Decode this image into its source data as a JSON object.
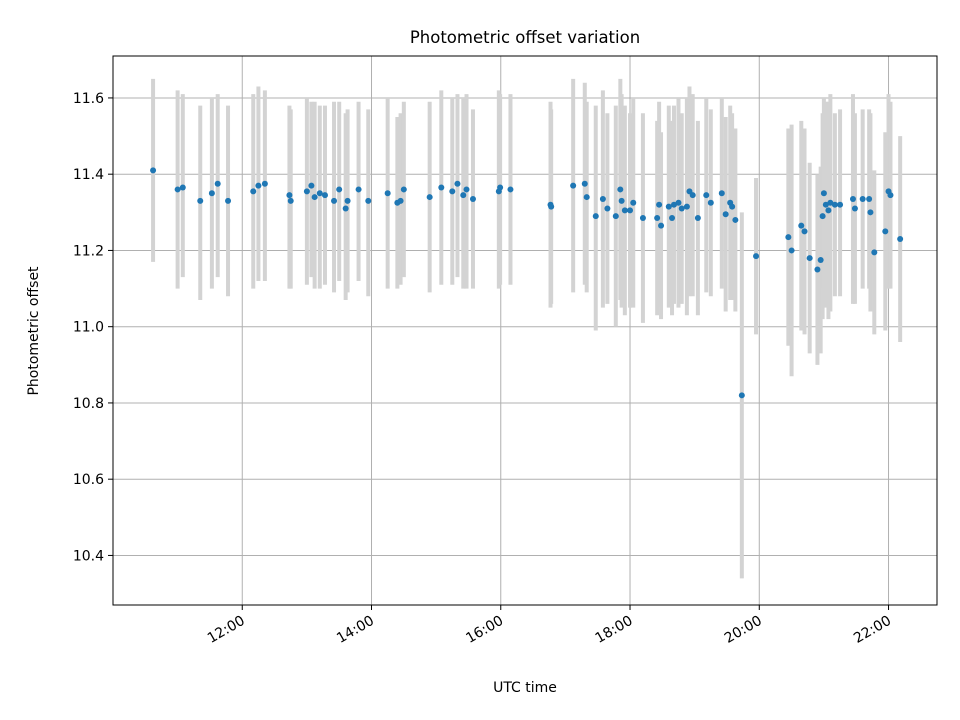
{
  "chart_data": {
    "type": "scatter",
    "title": "Photometric offset variation",
    "xlabel": "UTC time",
    "ylabel": "Photometric offset",
    "x_unit": "hours UTC",
    "xlim": [
      10.0,
      22.75
    ],
    "ylim": [
      10.27,
      11.71
    ],
    "x_ticks": [
      12,
      14,
      16,
      18,
      20,
      22
    ],
    "x_tick_labels": [
      "12:00",
      "14:00",
      "16:00",
      "18:00",
      "20:00",
      "22:00"
    ],
    "y_ticks": [
      10.4,
      10.6,
      10.8,
      11.0,
      11.2,
      11.4,
      11.6
    ],
    "y_tick_labels": [
      "10.4",
      "10.6",
      "10.8",
      "11.0",
      "11.2",
      "11.4",
      "11.6"
    ],
    "grid": true,
    "marker_color": "#1f77b4",
    "errorbar_color": "#d3d3d3",
    "points": [
      {
        "x": 10.62,
        "y": 11.41,
        "err_low": 11.17,
        "err_high": 11.65
      },
      {
        "x": 11.0,
        "y": 11.36,
        "err_low": 11.1,
        "err_high": 11.62
      },
      {
        "x": 11.08,
        "y": 11.365,
        "err_low": 11.13,
        "err_high": 11.61
      },
      {
        "x": 11.35,
        "y": 11.33,
        "err_low": 11.07,
        "err_high": 11.58
      },
      {
        "x": 11.53,
        "y": 11.35,
        "err_low": 11.1,
        "err_high": 11.6
      },
      {
        "x": 11.62,
        "y": 11.375,
        "err_low": 11.13,
        "err_high": 11.61
      },
      {
        "x": 11.78,
        "y": 11.33,
        "err_low": 11.08,
        "err_high": 11.58
      },
      {
        "x": 12.17,
        "y": 11.355,
        "err_low": 11.1,
        "err_high": 11.61
      },
      {
        "x": 12.25,
        "y": 11.37,
        "err_low": 11.12,
        "err_high": 11.63
      },
      {
        "x": 12.35,
        "y": 11.375,
        "err_low": 11.12,
        "err_high": 11.62
      },
      {
        "x": 12.73,
        "y": 11.345,
        "err_low": 11.1,
        "err_high": 11.58
      },
      {
        "x": 12.75,
        "y": 11.33,
        "err_low": 11.1,
        "err_high": 11.57
      },
      {
        "x": 13.0,
        "y": 11.355,
        "err_low": 11.11,
        "err_high": 11.6
      },
      {
        "x": 13.07,
        "y": 11.37,
        "err_low": 11.13,
        "err_high": 11.59
      },
      {
        "x": 13.12,
        "y": 11.34,
        "err_low": 11.1,
        "err_high": 11.59
      },
      {
        "x": 13.2,
        "y": 11.35,
        "err_low": 11.1,
        "err_high": 11.58
      },
      {
        "x": 13.28,
        "y": 11.345,
        "err_low": 11.11,
        "err_high": 11.58
      },
      {
        "x": 13.42,
        "y": 11.33,
        "err_low": 11.09,
        "err_high": 11.59
      },
      {
        "x": 13.5,
        "y": 11.36,
        "err_low": 11.12,
        "err_high": 11.59
      },
      {
        "x": 13.6,
        "y": 11.31,
        "err_low": 11.07,
        "err_high": 11.56
      },
      {
        "x": 13.63,
        "y": 11.33,
        "err_low": 11.09,
        "err_high": 11.57
      },
      {
        "x": 13.8,
        "y": 11.36,
        "err_low": 11.12,
        "err_high": 11.59
      },
      {
        "x": 13.95,
        "y": 11.33,
        "err_low": 11.08,
        "err_high": 11.57
      },
      {
        "x": 14.25,
        "y": 11.35,
        "err_low": 11.1,
        "err_high": 11.6
      },
      {
        "x": 14.4,
        "y": 11.325,
        "err_low": 11.1,
        "err_high": 11.55
      },
      {
        "x": 14.45,
        "y": 11.33,
        "err_low": 11.11,
        "err_high": 11.56
      },
      {
        "x": 14.5,
        "y": 11.36,
        "err_low": 11.13,
        "err_high": 11.59
      },
      {
        "x": 14.9,
        "y": 11.34,
        "err_low": 11.09,
        "err_high": 11.59
      },
      {
        "x": 15.08,
        "y": 11.365,
        "err_low": 11.11,
        "err_high": 11.62
      },
      {
        "x": 15.25,
        "y": 11.355,
        "err_low": 11.11,
        "err_high": 11.6
      },
      {
        "x": 15.33,
        "y": 11.375,
        "err_low": 11.13,
        "err_high": 11.61
      },
      {
        "x": 15.42,
        "y": 11.345,
        "err_low": 11.1,
        "err_high": 11.6
      },
      {
        "x": 15.47,
        "y": 11.36,
        "err_low": 11.1,
        "err_high": 11.61
      },
      {
        "x": 15.57,
        "y": 11.335,
        "err_low": 11.1,
        "err_high": 11.57
      },
      {
        "x": 15.97,
        "y": 11.355,
        "err_low": 11.1,
        "err_high": 11.62
      },
      {
        "x": 15.99,
        "y": 11.365,
        "err_low": 11.11,
        "err_high": 11.61
      },
      {
        "x": 16.15,
        "y": 11.36,
        "err_low": 11.11,
        "err_high": 11.61
      },
      {
        "x": 16.77,
        "y": 11.32,
        "err_low": 11.05,
        "err_high": 11.59
      },
      {
        "x": 16.78,
        "y": 11.315,
        "err_low": 11.06,
        "err_high": 11.57
      },
      {
        "x": 17.12,
        "y": 11.37,
        "err_low": 11.09,
        "err_high": 11.65
      },
      {
        "x": 17.3,
        "y": 11.375,
        "err_low": 11.11,
        "err_high": 11.64
      },
      {
        "x": 17.33,
        "y": 11.34,
        "err_low": 11.09,
        "err_high": 11.59
      },
      {
        "x": 17.47,
        "y": 11.29,
        "err_low": 10.99,
        "err_high": 11.58
      },
      {
        "x": 17.58,
        "y": 11.335,
        "err_low": 11.05,
        "err_high": 11.62
      },
      {
        "x": 17.65,
        "y": 11.31,
        "err_low": 11.06,
        "err_high": 11.56
      },
      {
        "x": 17.78,
        "y": 11.29,
        "err_low": 11.0,
        "err_high": 11.58
      },
      {
        "x": 17.85,
        "y": 11.36,
        "err_low": 11.07,
        "err_high": 11.65
      },
      {
        "x": 17.87,
        "y": 11.33,
        "err_low": 11.05,
        "err_high": 11.61
      },
      {
        "x": 17.92,
        "y": 11.305,
        "err_low": 11.03,
        "err_high": 11.58
      },
      {
        "x": 18.0,
        "y": 11.305,
        "err_low": 11.05,
        "err_high": 11.56
      },
      {
        "x": 18.05,
        "y": 11.325,
        "err_low": 11.05,
        "err_high": 11.6
      },
      {
        "x": 18.2,
        "y": 11.285,
        "err_low": 11.01,
        "err_high": 11.56
      },
      {
        "x": 18.42,
        "y": 11.285,
        "err_low": 11.03,
        "err_high": 11.54
      },
      {
        "x": 18.45,
        "y": 11.32,
        "err_low": 11.05,
        "err_high": 11.59
      },
      {
        "x": 18.48,
        "y": 11.265,
        "err_low": 11.02,
        "err_high": 11.51
      },
      {
        "x": 18.6,
        "y": 11.315,
        "err_low": 11.05,
        "err_high": 11.58
      },
      {
        "x": 18.65,
        "y": 11.285,
        "err_low": 11.03,
        "err_high": 11.54
      },
      {
        "x": 18.68,
        "y": 11.32,
        "err_low": 11.06,
        "err_high": 11.58
      },
      {
        "x": 18.75,
        "y": 11.325,
        "err_low": 11.05,
        "err_high": 11.6
      },
      {
        "x": 18.8,
        "y": 11.31,
        "err_low": 11.06,
        "err_high": 11.56
      },
      {
        "x": 18.88,
        "y": 11.315,
        "err_low": 11.03,
        "err_high": 11.6
      },
      {
        "x": 18.92,
        "y": 11.355,
        "err_low": 11.08,
        "err_high": 11.63
      },
      {
        "x": 18.97,
        "y": 11.345,
        "err_low": 11.08,
        "err_high": 11.61
      },
      {
        "x": 19.05,
        "y": 11.285,
        "err_low": 11.03,
        "err_high": 11.54
      },
      {
        "x": 19.18,
        "y": 11.345,
        "err_low": 11.09,
        "err_high": 11.6
      },
      {
        "x": 19.25,
        "y": 11.325,
        "err_low": 11.08,
        "err_high": 11.57
      },
      {
        "x": 19.42,
        "y": 11.35,
        "err_low": 11.1,
        "err_high": 11.6
      },
      {
        "x": 19.48,
        "y": 11.295,
        "err_low": 11.04,
        "err_high": 11.55
      },
      {
        "x": 19.55,
        "y": 11.325,
        "err_low": 11.07,
        "err_high": 11.58
      },
      {
        "x": 19.58,
        "y": 11.315,
        "err_low": 11.07,
        "err_high": 11.56
      },
      {
        "x": 19.63,
        "y": 11.28,
        "err_low": 11.04,
        "err_high": 11.52
      },
      {
        "x": 19.73,
        "y": 10.82,
        "err_low": 10.34,
        "err_high": 11.3
      },
      {
        "x": 19.95,
        "y": 11.185,
        "err_low": 10.98,
        "err_high": 11.39
      },
      {
        "x": 20.45,
        "y": 11.235,
        "err_low": 10.95,
        "err_high": 11.52
      },
      {
        "x": 20.5,
        "y": 11.2,
        "err_low": 10.87,
        "err_high": 11.53
      },
      {
        "x": 20.65,
        "y": 11.265,
        "err_low": 10.99,
        "err_high": 11.54
      },
      {
        "x": 20.7,
        "y": 11.25,
        "err_low": 10.98,
        "err_high": 11.52
      },
      {
        "x": 20.78,
        "y": 11.18,
        "err_low": 10.93,
        "err_high": 11.43
      },
      {
        "x": 20.9,
        "y": 11.15,
        "err_low": 10.9,
        "err_high": 11.4
      },
      {
        "x": 20.95,
        "y": 11.175,
        "err_low": 10.93,
        "err_high": 11.42
      },
      {
        "x": 20.98,
        "y": 11.29,
        "err_low": 11.02,
        "err_high": 11.56
      },
      {
        "x": 21.0,
        "y": 11.35,
        "err_low": 11.1,
        "err_high": 11.6
      },
      {
        "x": 21.03,
        "y": 11.32,
        "err_low": 11.05,
        "err_high": 11.59
      },
      {
        "x": 21.07,
        "y": 11.305,
        "err_low": 11.02,
        "err_high": 11.59
      },
      {
        "x": 21.1,
        "y": 11.325,
        "err_low": 11.04,
        "err_high": 11.61
      },
      {
        "x": 21.17,
        "y": 11.32,
        "err_low": 11.08,
        "err_high": 11.56
      },
      {
        "x": 21.25,
        "y": 11.32,
        "err_low": 11.08,
        "err_high": 11.57
      },
      {
        "x": 21.45,
        "y": 11.335,
        "err_low": 11.06,
        "err_high": 11.61
      },
      {
        "x": 21.48,
        "y": 11.31,
        "err_low": 11.06,
        "err_high": 11.56
      },
      {
        "x": 21.6,
        "y": 11.335,
        "err_low": 11.1,
        "err_high": 11.57
      },
      {
        "x": 21.7,
        "y": 11.335,
        "err_low": 11.1,
        "err_high": 11.57
      },
      {
        "x": 21.72,
        "y": 11.3,
        "err_low": 11.04,
        "err_high": 11.56
      },
      {
        "x": 21.78,
        "y": 11.195,
        "err_low": 10.98,
        "err_high": 11.41
      },
      {
        "x": 21.95,
        "y": 11.25,
        "err_low": 10.99,
        "err_high": 11.51
      },
      {
        "x": 22.0,
        "y": 11.355,
        "err_low": 11.1,
        "err_high": 11.61
      },
      {
        "x": 22.03,
        "y": 11.345,
        "err_low": 11.1,
        "err_high": 11.59
      },
      {
        "x": 22.18,
        "y": 11.23,
        "err_low": 10.96,
        "err_high": 11.5
      }
    ]
  }
}
